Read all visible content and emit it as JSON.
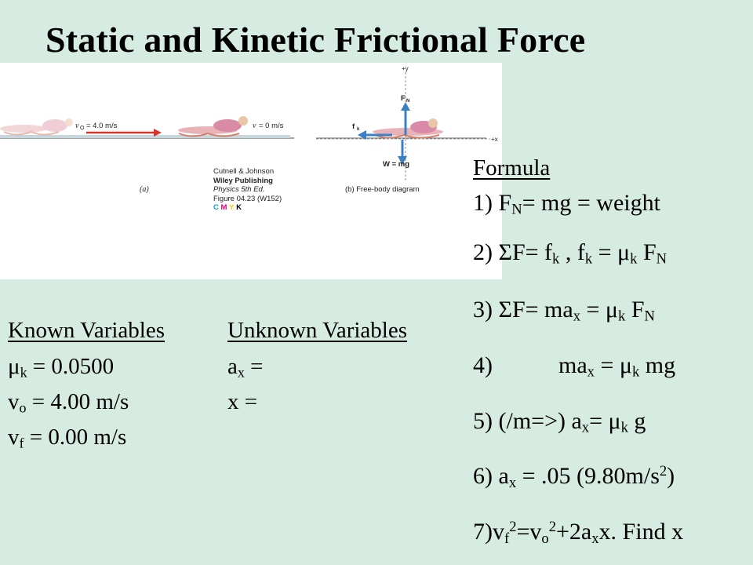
{
  "title": "Static and Kinetic Frictional Force",
  "figure": {
    "vo_label": "= 4.0 m/s",
    "v_label": "= 0 m/s",
    "part_a": "(a)",
    "part_b": "(b)  Free-body diagram",
    "fn": "F",
    "w": "W = mg",
    "fk": "f",
    "plus_y": "+y",
    "plus_x": "+x",
    "credit": [
      "Cutnell & Johnson",
      "Wiley Publishing",
      "Physics 5th Ed.",
      "Figure 04.23 (W152)"
    ],
    "cmyk": [
      "C",
      "M",
      "Y",
      "K"
    ],
    "cmyk_colors": [
      "#00a0e0",
      "#e0007a",
      "#f0d000",
      "#000000"
    ]
  },
  "known": {
    "heading": "Known Variables ",
    "mu_value": " = 0.0500",
    "vo_value": " = 4.00 m/s",
    "vf_value": " = 0.00 m/s"
  },
  "unknown": {
    "heading": "Unknown Variables",
    "ax_eq": " =",
    "x_eq": "x  ="
  },
  "formula": {
    "heading": "Formula",
    "f1_prefix": "1) F",
    "f1_rest": "= mg = weight",
    "f2_prefix": "2) ΣF= f",
    "f3_prefix": "3) ΣF= ma",
    "f4_prefix": "4)",
    "f4_rest": "ma",
    "f5_prefix": "5) (/m=>) a",
    "f6_prefix": "6) a",
    "f6_rest": " = .05 (9.80m/s",
    "f7_prefix": "7)v",
    "f7_end": "x. Find x"
  }
}
